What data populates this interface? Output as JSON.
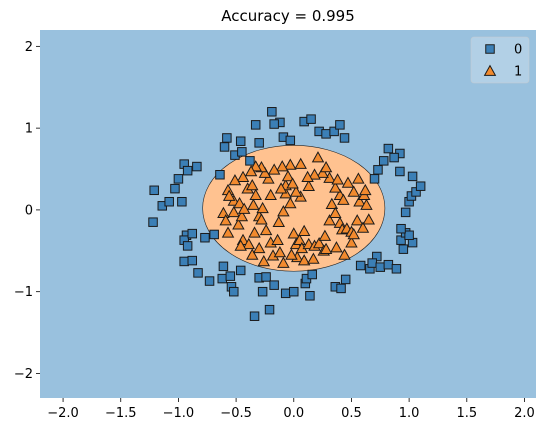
{
  "chart_data": {
    "type": "scatter",
    "title": "Accuracy = 0.995",
    "xlabel": "",
    "ylabel": "",
    "xlim": [
      -2.2,
      2.1
    ],
    "ylim": [
      -2.3,
      2.2
    ],
    "xticks": [
      -2.0,
      -1.5,
      -1.0,
      -0.5,
      0.0,
      0.5,
      1.0,
      1.5,
      2.0
    ],
    "yticks": [
      -2,
      -1,
      0,
      1,
      2
    ],
    "xtick_labels": [
      "−2.0",
      "−1.5",
      "−1.0",
      "−0.5",
      "0.0",
      "0.5",
      "1.0",
      "1.5",
      "2.0"
    ],
    "ytick_labels": [
      "−2",
      "−1",
      "0",
      "1",
      "2"
    ],
    "grid": false,
    "legend_position": "top-right",
    "colors": {
      "class0_region": "#99c1de",
      "class1_region": "#ffc290",
      "class0_marker": "#3b7fb6",
      "class1_marker": "#f28a2e",
      "marker_edge": "#1a1a1a"
    },
    "decision_region_class1": {
      "shape": "ellipse",
      "center": [
        0.0,
        0.02
      ],
      "rx": 0.79,
      "ry": 0.77
    },
    "series": [
      {
        "name": "0",
        "marker": "square",
        "points": [
          [
            -1.21,
            0.24
          ],
          [
            -1.22,
            -0.15
          ],
          [
            -1.14,
            0.05
          ],
          [
            -1.08,
            0.1
          ],
          [
            -1.03,
            0.26
          ],
          [
            -1.0,
            0.38
          ],
          [
            -0.97,
            0.1
          ],
          [
            -0.95,
            0.56
          ],
          [
            -0.93,
            -0.31
          ],
          [
            -0.95,
            -0.37
          ],
          [
            -0.92,
            -0.44
          ],
          [
            -0.88,
            -0.29
          ],
          [
            -0.95,
            -0.63
          ],
          [
            -0.88,
            -0.62
          ],
          [
            -0.84,
            0.53
          ],
          [
            -0.92,
            0.48
          ],
          [
            -0.83,
            -0.77
          ],
          [
            -0.77,
            -0.34
          ],
          [
            -0.73,
            -0.87
          ],
          [
            -0.69,
            -0.3
          ],
          [
            -0.64,
            0.43
          ],
          [
            -0.61,
            -0.69
          ],
          [
            -0.62,
            -0.84
          ],
          [
            -0.55,
            -0.81
          ],
          [
            -0.54,
            -0.94
          ],
          [
            -0.52,
            -1.0
          ],
          [
            -0.46,
            -0.74
          ],
          [
            -0.6,
            0.77
          ],
          [
            -0.58,
            0.88
          ],
          [
            -0.51,
            0.67
          ],
          [
            -0.46,
            0.84
          ],
          [
            -0.45,
            0.71
          ],
          [
            -0.38,
            0.6
          ],
          [
            -0.33,
            1.04
          ],
          [
            -0.3,
            0.82
          ],
          [
            -0.3,
            -0.83
          ],
          [
            -0.24,
            -0.82
          ],
          [
            -0.27,
            -1.0
          ],
          [
            -0.34,
            -1.3
          ],
          [
            -0.21,
            -1.22
          ],
          [
            -0.17,
            -0.92
          ],
          [
            -0.07,
            -1.02
          ],
          [
            -0.19,
            1.2
          ],
          [
            -0.12,
            1.07
          ],
          [
            -0.17,
            1.05
          ],
          [
            -0.09,
            0.89
          ],
          [
            -0.03,
            0.85
          ],
          [
            0.09,
            1.08
          ],
          [
            0.15,
            1.11
          ],
          [
            0.22,
            0.96
          ],
          [
            0.28,
            0.93
          ],
          [
            0.35,
            0.96
          ],
          [
            0.4,
            1.04
          ],
          [
            0.44,
            0.88
          ],
          [
            0.0,
            -1.0
          ],
          [
            0.1,
            -0.9
          ],
          [
            0.11,
            -0.84
          ],
          [
            0.16,
            -0.79
          ],
          [
            0.14,
            -1.05
          ],
          [
            0.36,
            -0.94
          ],
          [
            0.41,
            -0.96
          ],
          [
            0.45,
            -0.85
          ],
          [
            0.58,
            -0.68
          ],
          [
            0.66,
            -0.72
          ],
          [
            0.72,
            -0.57
          ],
          [
            0.68,
            -0.65
          ],
          [
            0.75,
            -0.7
          ],
          [
            0.82,
            -0.67
          ],
          [
            0.89,
            -0.72
          ],
          [
            0.93,
            -0.37
          ],
          [
            0.97,
            -0.28
          ],
          [
            1.03,
            -0.4
          ],
          [
            1.0,
            -0.31
          ],
          [
            0.95,
            -0.48
          ],
          [
            0.93,
            -0.23
          ],
          [
            0.97,
            -0.03
          ],
          [
            1.0,
            0.1
          ],
          [
            1.02,
            0.17
          ],
          [
            1.06,
            0.22
          ],
          [
            1.1,
            0.29
          ],
          [
            1.03,
            0.41
          ],
          [
            0.92,
            0.47
          ],
          [
            0.92,
            0.69
          ],
          [
            0.87,
            0.64
          ],
          [
            0.82,
            0.75
          ],
          [
            0.78,
            0.6
          ],
          [
            0.73,
            0.49
          ],
          [
            0.7,
            0.38
          ]
        ]
      },
      {
        "name": "1",
        "marker": "triangle",
        "points": [
          [
            -0.57,
            0.24
          ],
          [
            -0.52,
            0.11
          ],
          [
            -0.47,
            0.08
          ],
          [
            -0.52,
            -0.03
          ],
          [
            -0.57,
            -0.28
          ],
          [
            -0.48,
            -0.18
          ],
          [
            -0.45,
            -0.08
          ],
          [
            -0.43,
            0.01
          ],
          [
            -0.4,
            0.26
          ],
          [
            -0.36,
            0.3
          ],
          [
            -0.33,
            0.18
          ],
          [
            -0.35,
            0.06
          ],
          [
            -0.3,
            -0.08
          ],
          [
            -0.28,
            -0.12
          ],
          [
            -0.24,
            -0.25
          ],
          [
            -0.2,
            -0.4
          ],
          [
            -0.14,
            -0.37
          ],
          [
            -0.13,
            -0.15
          ],
          [
            -0.09,
            -0.02
          ],
          [
            -0.07,
            0.2
          ],
          [
            -0.07,
            0.3
          ],
          [
            -0.05,
            0.41
          ],
          [
            -0.03,
            0.08
          ],
          [
            0.0,
            -0.29
          ],
          [
            0.02,
            -0.42
          ],
          [
            0.03,
            -0.58
          ],
          [
            0.05,
            -0.37
          ],
          [
            0.07,
            -0.47
          ],
          [
            0.09,
            -0.26
          ],
          [
            0.13,
            -0.42
          ],
          [
            0.18,
            -0.44
          ],
          [
            0.22,
            -0.41
          ],
          [
            0.26,
            -0.5
          ],
          [
            0.27,
            -0.32
          ],
          [
            0.31,
            -0.13
          ],
          [
            0.33,
            0.07
          ],
          [
            0.36,
            -0.04
          ],
          [
            0.4,
            -0.16
          ],
          [
            0.42,
            -0.24
          ],
          [
            0.46,
            -0.23
          ],
          [
            0.5,
            -0.27
          ],
          [
            0.55,
            -0.13
          ],
          [
            0.57,
            0.1
          ],
          [
            0.61,
            0.18
          ],
          [
            0.56,
            0.38
          ],
          [
            0.47,
            0.33
          ],
          [
            0.4,
            0.18
          ],
          [
            0.36,
            0.27
          ],
          [
            0.31,
            0.39
          ],
          [
            0.25,
            0.45
          ],
          [
            0.18,
            0.43
          ],
          [
            0.13,
            0.29
          ],
          [
            0.06,
            0.16
          ],
          [
            0.02,
            0.22
          ],
          [
            -0.03,
            0.55
          ],
          [
            -0.1,
            0.53
          ],
          [
            -0.17,
            0.49
          ],
          [
            -0.22,
            0.38
          ],
          [
            -0.25,
            0.45
          ],
          [
            -0.28,
            0.52
          ],
          [
            -0.33,
            0.53
          ],
          [
            -0.37,
            0.47
          ],
          [
            -0.44,
            0.4
          ],
          [
            -0.51,
            0.36
          ],
          [
            -0.56,
            0.17
          ],
          [
            -0.61,
            -0.04
          ],
          [
            -0.59,
            -0.13
          ],
          [
            -0.44,
            -0.37
          ],
          [
            -0.39,
            -0.42
          ],
          [
            -0.36,
            -0.55
          ],
          [
            -0.3,
            -0.47
          ],
          [
            -0.26,
            -0.63
          ],
          [
            -0.18,
            -0.56
          ],
          [
            -0.12,
            -0.52
          ],
          [
            -0.09,
            -0.65
          ],
          [
            -0.02,
            -0.55
          ],
          [
            0.09,
            -0.62
          ],
          [
            0.17,
            -0.6
          ],
          [
            0.28,
            -0.48
          ],
          [
            0.37,
            -0.46
          ],
          [
            0.44,
            -0.55
          ],
          [
            0.5,
            -0.4
          ],
          [
            0.52,
            -0.3
          ],
          [
            0.6,
            -0.22
          ],
          [
            0.65,
            -0.12
          ],
          [
            0.63,
            0.06
          ],
          [
            0.62,
            0.24
          ],
          [
            0.52,
            0.22
          ],
          [
            0.43,
            0.12
          ],
          [
            0.38,
            0.37
          ],
          [
            0.28,
            0.52
          ],
          [
            0.21,
            0.64
          ],
          [
            0.12,
            0.4
          ],
          [
            0.06,
            0.56
          ],
          [
            -0.01,
            0.32
          ],
          [
            -0.11,
            0.26
          ],
          [
            -0.2,
            0.18
          ],
          [
            -0.27,
            0.02
          ],
          [
            -0.34,
            -0.28
          ],
          [
            -0.46,
            -0.44
          ]
        ]
      }
    ]
  }
}
